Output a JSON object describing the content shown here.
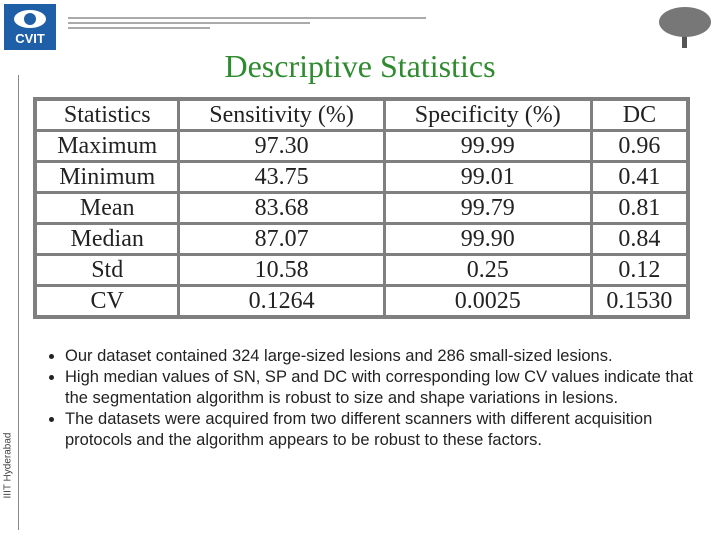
{
  "header": {
    "logo": "CVIT",
    "title": "Descriptive Statistics",
    "side_label": "IIIT Hyderabad"
  },
  "table": {
    "header": [
      "Statistics",
      "Sensitivity (%)",
      "Specificity (%)",
      "DC"
    ],
    "rows": [
      [
        "Maximum",
        "97.30",
        "99.99",
        "0.96"
      ],
      [
        "Minimum",
        "43.75",
        "99.01",
        "0.41"
      ],
      [
        "Mean",
        "83.68",
        "99.79",
        "0.81"
      ],
      [
        "Median",
        "87.07",
        "99.90",
        "0.84"
      ],
      [
        "Std",
        "10.58",
        "0.25",
        "0.12"
      ],
      [
        "CV",
        "0.1264",
        "0.0025",
        "0.1530"
      ]
    ]
  },
  "bullets": [
    "Our dataset contained 324 large-sized lesions and 286 small-sized lesions.",
    "High median values of SN, SP and DC with corresponding low CV values indicate that the segmentation algorithm is robust to size and shape variations in lesions.",
    "The datasets were acquired from two different scanners with different acquisition protocols and the algorithm appears to be robust to these factors."
  ]
}
